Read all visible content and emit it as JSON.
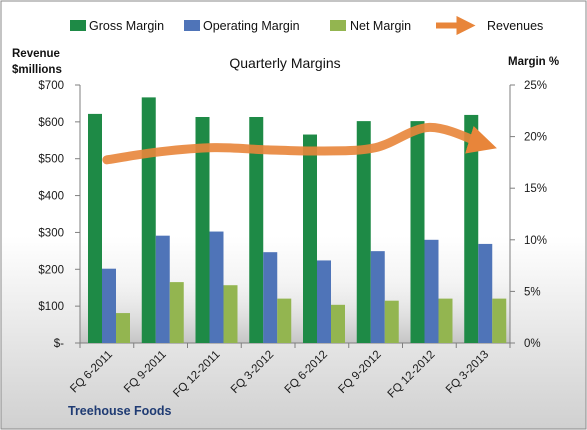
{
  "chart_data": {
    "type": "bar",
    "title": "Quarterly Margins",
    "y_left_label_line1": "Revenue",
    "y_left_label_line2": "$millions",
    "y_right_label": "Margin %",
    "footer": "Treehouse Foods",
    "categories": [
      "FQ 6-2011",
      "FQ 9-2011",
      "FQ 12-2011",
      "FQ 3-2012",
      "FQ 6-2012",
      "FQ 9-2012",
      "FQ 12-2012",
      "FQ 3-2013"
    ],
    "ylim_left": [
      0,
      700
    ],
    "ylim_right": [
      0,
      25
    ],
    "left_ticks": [
      {
        "value": 0,
        "label": "$-"
      },
      {
        "value": 100,
        "label": "$100"
      },
      {
        "value": 200,
        "label": "$200"
      },
      {
        "value": 300,
        "label": "$300"
      },
      {
        "value": 400,
        "label": "$400"
      },
      {
        "value": 500,
        "label": "$500"
      },
      {
        "value": 600,
        "label": "$600"
      },
      {
        "value": 700,
        "label": "$700"
      }
    ],
    "right_ticks": [
      {
        "value": 0,
        "label": "0%"
      },
      {
        "value": 5,
        "label": "5%"
      },
      {
        "value": 10,
        "label": "10%"
      },
      {
        "value": 15,
        "label": "15%"
      },
      {
        "value": 20,
        "label": "20%"
      },
      {
        "value": 25,
        "label": "25%"
      }
    ],
    "legend_position": "top",
    "series": [
      {
        "name": "Gross Margin",
        "kind": "bar",
        "axis": "right",
        "color": "#1e8a46",
        "values": [
          22.2,
          23.8,
          21.9,
          21.9,
          20.2,
          21.5,
          21.5,
          22.1
        ]
      },
      {
        "name": "Operating Margin",
        "kind": "bar",
        "axis": "right",
        "color": "#4f74b8",
        "values": [
          7.2,
          10.4,
          10.8,
          8.8,
          8.0,
          8.9,
          10.0,
          9.6
        ]
      },
      {
        "name": "Net Margin",
        "kind": "bar",
        "axis": "right",
        "color": "#93b550",
        "values": [
          2.9,
          5.9,
          5.6,
          4.3,
          3.7,
          4.1,
          4.3,
          4.3
        ]
      },
      {
        "name": "Revenues",
        "kind": "line",
        "axis": "left",
        "color": "#e8853a",
        "values": [
          497,
          519,
          530,
          524,
          521,
          530,
          585,
          540
        ]
      }
    ]
  }
}
